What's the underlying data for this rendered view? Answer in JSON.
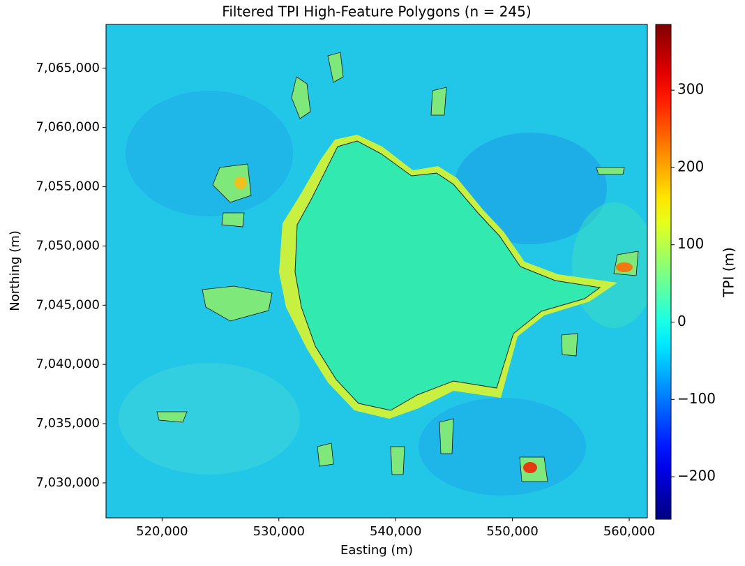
{
  "chart_data": {
    "type": "heatmap",
    "title": "Filtered TPI High-Feature Polygons (n = 245)",
    "x_label": "Easting (m)",
    "y_label": "Northing (m)",
    "colorbar_label": "TPI (m)",
    "colormap": "jet",
    "xlim": [
      515200,
      561550
    ],
    "xticks": [
      {
        "value": 520000,
        "label": "520,000"
      },
      {
        "value": 530000,
        "label": "530,000"
      },
      {
        "value": 540000,
        "label": "540,000"
      },
      {
        "value": 550000,
        "label": "550,000"
      },
      {
        "value": 560000,
        "label": "560,000"
      }
    ],
    "ylim": [
      7027050,
      7068700
    ],
    "yticks": [
      {
        "value": 7030000,
        "label": "7,030,000"
      },
      {
        "value": 7035000,
        "label": "7,035,000"
      },
      {
        "value": 7040000,
        "label": "7,040,000"
      },
      {
        "value": 7045000,
        "label": "7,045,000"
      },
      {
        "value": 7050000,
        "label": "7,050,000"
      },
      {
        "value": 7055000,
        "label": "7,055,000"
      },
      {
        "value": 7060000,
        "label": "7,060,000"
      },
      {
        "value": 7065000,
        "label": "7,065,000"
      }
    ],
    "clim": [
      -255,
      385
    ],
    "cticks": [
      {
        "value": -200,
        "label": "−200"
      },
      {
        "value": -100,
        "label": "−100"
      },
      0,
      100,
      200,
      300
    ]
  }
}
